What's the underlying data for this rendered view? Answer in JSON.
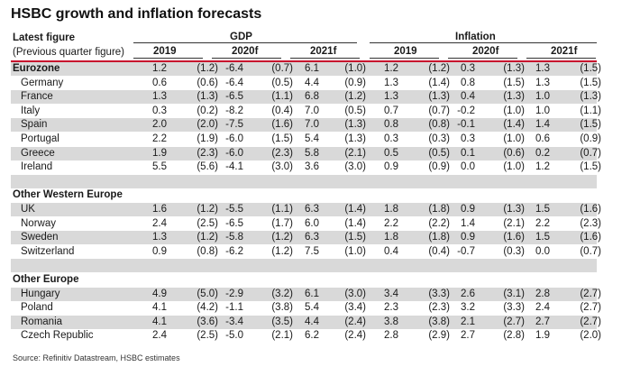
{
  "title": "HSBC growth and inflation forecasts",
  "header": {
    "latest_figure": "Latest figure",
    "previous_quarter": "(Previous quarter figure)",
    "gdp": "GDP",
    "inflation": "Inflation",
    "years": [
      "2019",
      "2020f",
      "2021f"
    ]
  },
  "groups": [
    {
      "name": "Eurozone",
      "values": [
        "1.2",
        "(1.2)",
        "-6.4",
        "(0.7)",
        "6.1",
        "(1.0)",
        "1.2",
        "(1.2)",
        "0.3",
        "(1.3)",
        "1.3",
        "(1.5)"
      ],
      "countries": [
        {
          "name": "Germany",
          "values": [
            "0.6",
            "(0.6)",
            "-6.4",
            "(0.5)",
            "4.4",
            "(0.9)",
            "1.3",
            "(1.4)",
            "0.8",
            "(1.5)",
            "1.3",
            "(1.5)"
          ]
        },
        {
          "name": "France",
          "values": [
            "1.3",
            "(1.3)",
            "-6.5",
            "(1.1)",
            "6.8",
            "(1.2)",
            "1.3",
            "(1.3)",
            "0.4",
            "(1.3)",
            "1.0",
            "(1.3)"
          ]
        },
        {
          "name": "Italy",
          "values": [
            "0.3",
            "(0.2)",
            "-8.2",
            "(0.4)",
            "7.0",
            "(0.5)",
            "0.7",
            "(0.7)",
            "-0.2",
            "(1.0)",
            "1.0",
            "(1.1)"
          ]
        },
        {
          "name": "Spain",
          "values": [
            "2.0",
            "(2.0)",
            "-7.5",
            "(1.6)",
            "7.0",
            "(1.3)",
            "0.8",
            "(0.8)",
            "-0.1",
            "(1.4)",
            "1.4",
            "(1.5)"
          ]
        },
        {
          "name": "Portugal",
          "values": [
            "2.2",
            "(1.9)",
            "-6.0",
            "(1.5)",
            "5.4",
            "(1.3)",
            "0.3",
            "(0.3)",
            "0.3",
            "(1.0)",
            "0.6",
            "(0.9)"
          ]
        },
        {
          "name": "Greece",
          "values": [
            "1.9",
            "(2.3)",
            "-6.0",
            "(2.3)",
            "5.8",
            "(2.1)",
            "0.5",
            "(0.5)",
            "0.1",
            "(0.6)",
            "0.2",
            "(0.7)"
          ]
        },
        {
          "name": "Ireland",
          "values": [
            "5.5",
            "(5.6)",
            "-4.1",
            "(3.0)",
            "3.6",
            "(3.0)",
            "0.9",
            "(0.9)",
            "0.0",
            "(1.0)",
            "1.2",
            "(1.5)"
          ]
        }
      ]
    },
    {
      "name": "Other Western Europe",
      "values": [],
      "countries": [
        {
          "name": "UK",
          "values": [
            "1.6",
            "(1.2)",
            "-5.5",
            "(1.1)",
            "6.3",
            "(1.4)",
            "1.8",
            "(1.8)",
            "0.9",
            "(1.3)",
            "1.5",
            "(1.6)"
          ]
        },
        {
          "name": "Norway",
          "values": [
            "2.4",
            "(2.5)",
            "-6.5",
            "(1.7)",
            "6.0",
            "(1.4)",
            "2.2",
            "(2.2)",
            "1.4",
            "(2.1)",
            "2.2",
            "(2.3)"
          ]
        },
        {
          "name": "Sweden",
          "values": [
            "1.3",
            "(1.2)",
            "-5.8",
            "(1.2)",
            "6.3",
            "(1.5)",
            "1.8",
            "(1.8)",
            "0.9",
            "(1.6)",
            "1.5",
            "(1.6)"
          ]
        },
        {
          "name": "Switzerland",
          "values": [
            "0.9",
            "(0.8)",
            "-6.2",
            "(1.2)",
            "7.5",
            "(1.0)",
            "0.4",
            "(0.4)",
            "-0.7",
            "(0.3)",
            "0.0",
            "(0.7)"
          ]
        }
      ]
    },
    {
      "name": "Other Europe",
      "values": [],
      "countries": [
        {
          "name": "Hungary",
          "values": [
            "4.9",
            "(5.0)",
            "-2.9",
            "(3.2)",
            "6.1",
            "(3.0)",
            "3.4",
            "(3.3)",
            "2.6",
            "(3.1)",
            "2.8",
            "(2.7)"
          ]
        },
        {
          "name": "Poland",
          "values": [
            "4.1",
            "(4.2)",
            "-1.1",
            "(3.8)",
            "5.4",
            "(3.4)",
            "2.3",
            "(2.3)",
            "3.2",
            "(3.3)",
            "2.4",
            "(2.7)"
          ]
        },
        {
          "name": "Romania",
          "values": [
            "4.1",
            "(3.6)",
            "-3.4",
            "(3.5)",
            "4.4",
            "(2.4)",
            "3.8",
            "(3.8)",
            "2.1",
            "(2.7)",
            "2.7",
            "(2.7)"
          ]
        },
        {
          "name": "Czech Republic",
          "values": [
            "2.4",
            "(2.5)",
            "-5.0",
            "(2.1)",
            "6.2",
            "(2.4)",
            "2.8",
            "(2.9)",
            "2.7",
            "(2.8)",
            "1.9",
            "(2.0)"
          ]
        }
      ]
    }
  ],
  "source": "Source: Refinitiv Datastream, HSBC estimates"
}
